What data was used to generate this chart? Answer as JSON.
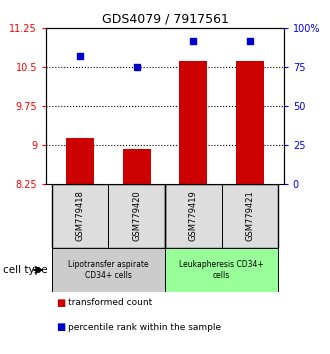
{
  "title": "GDS4079 / 7917561",
  "samples": [
    "GSM779418",
    "GSM779420",
    "GSM779419",
    "GSM779421"
  ],
  "transformed_count": [
    9.13,
    8.92,
    10.62,
    10.62
  ],
  "percentile_rank": [
    82,
    75,
    92,
    92
  ],
  "ylim_left": [
    8.25,
    11.25
  ],
  "ylim_right": [
    0,
    100
  ],
  "yticks_left": [
    8.25,
    9.0,
    9.75,
    10.5,
    11.25
  ],
  "ytick_labels_left": [
    "8.25",
    "9",
    "9.75",
    "10.5",
    "11.25"
  ],
  "yticks_right": [
    0,
    25,
    50,
    75,
    100
  ],
  "ytick_labels_right": [
    "0",
    "25",
    "50",
    "75",
    "100%"
  ],
  "hlines": [
    9.0,
    9.75,
    10.5
  ],
  "bar_color": "#cc0000",
  "dot_color": "#0000cc",
  "bar_width": 0.5,
  "cell_type_groups": [
    {
      "label": "Lipotransfer aspirate\nCD34+ cells",
      "indices": [
        0,
        1
      ],
      "color": "#cccccc"
    },
    {
      "label": "Leukapheresis CD34+\ncells",
      "indices": [
        2,
        3
      ],
      "color": "#99ff99"
    }
  ],
  "cell_type_label": "cell type",
  "legend_items": [
    {
      "color": "#cc0000",
      "label": "transformed count"
    },
    {
      "color": "#0000cc",
      "label": "percentile rank within the sample"
    }
  ]
}
